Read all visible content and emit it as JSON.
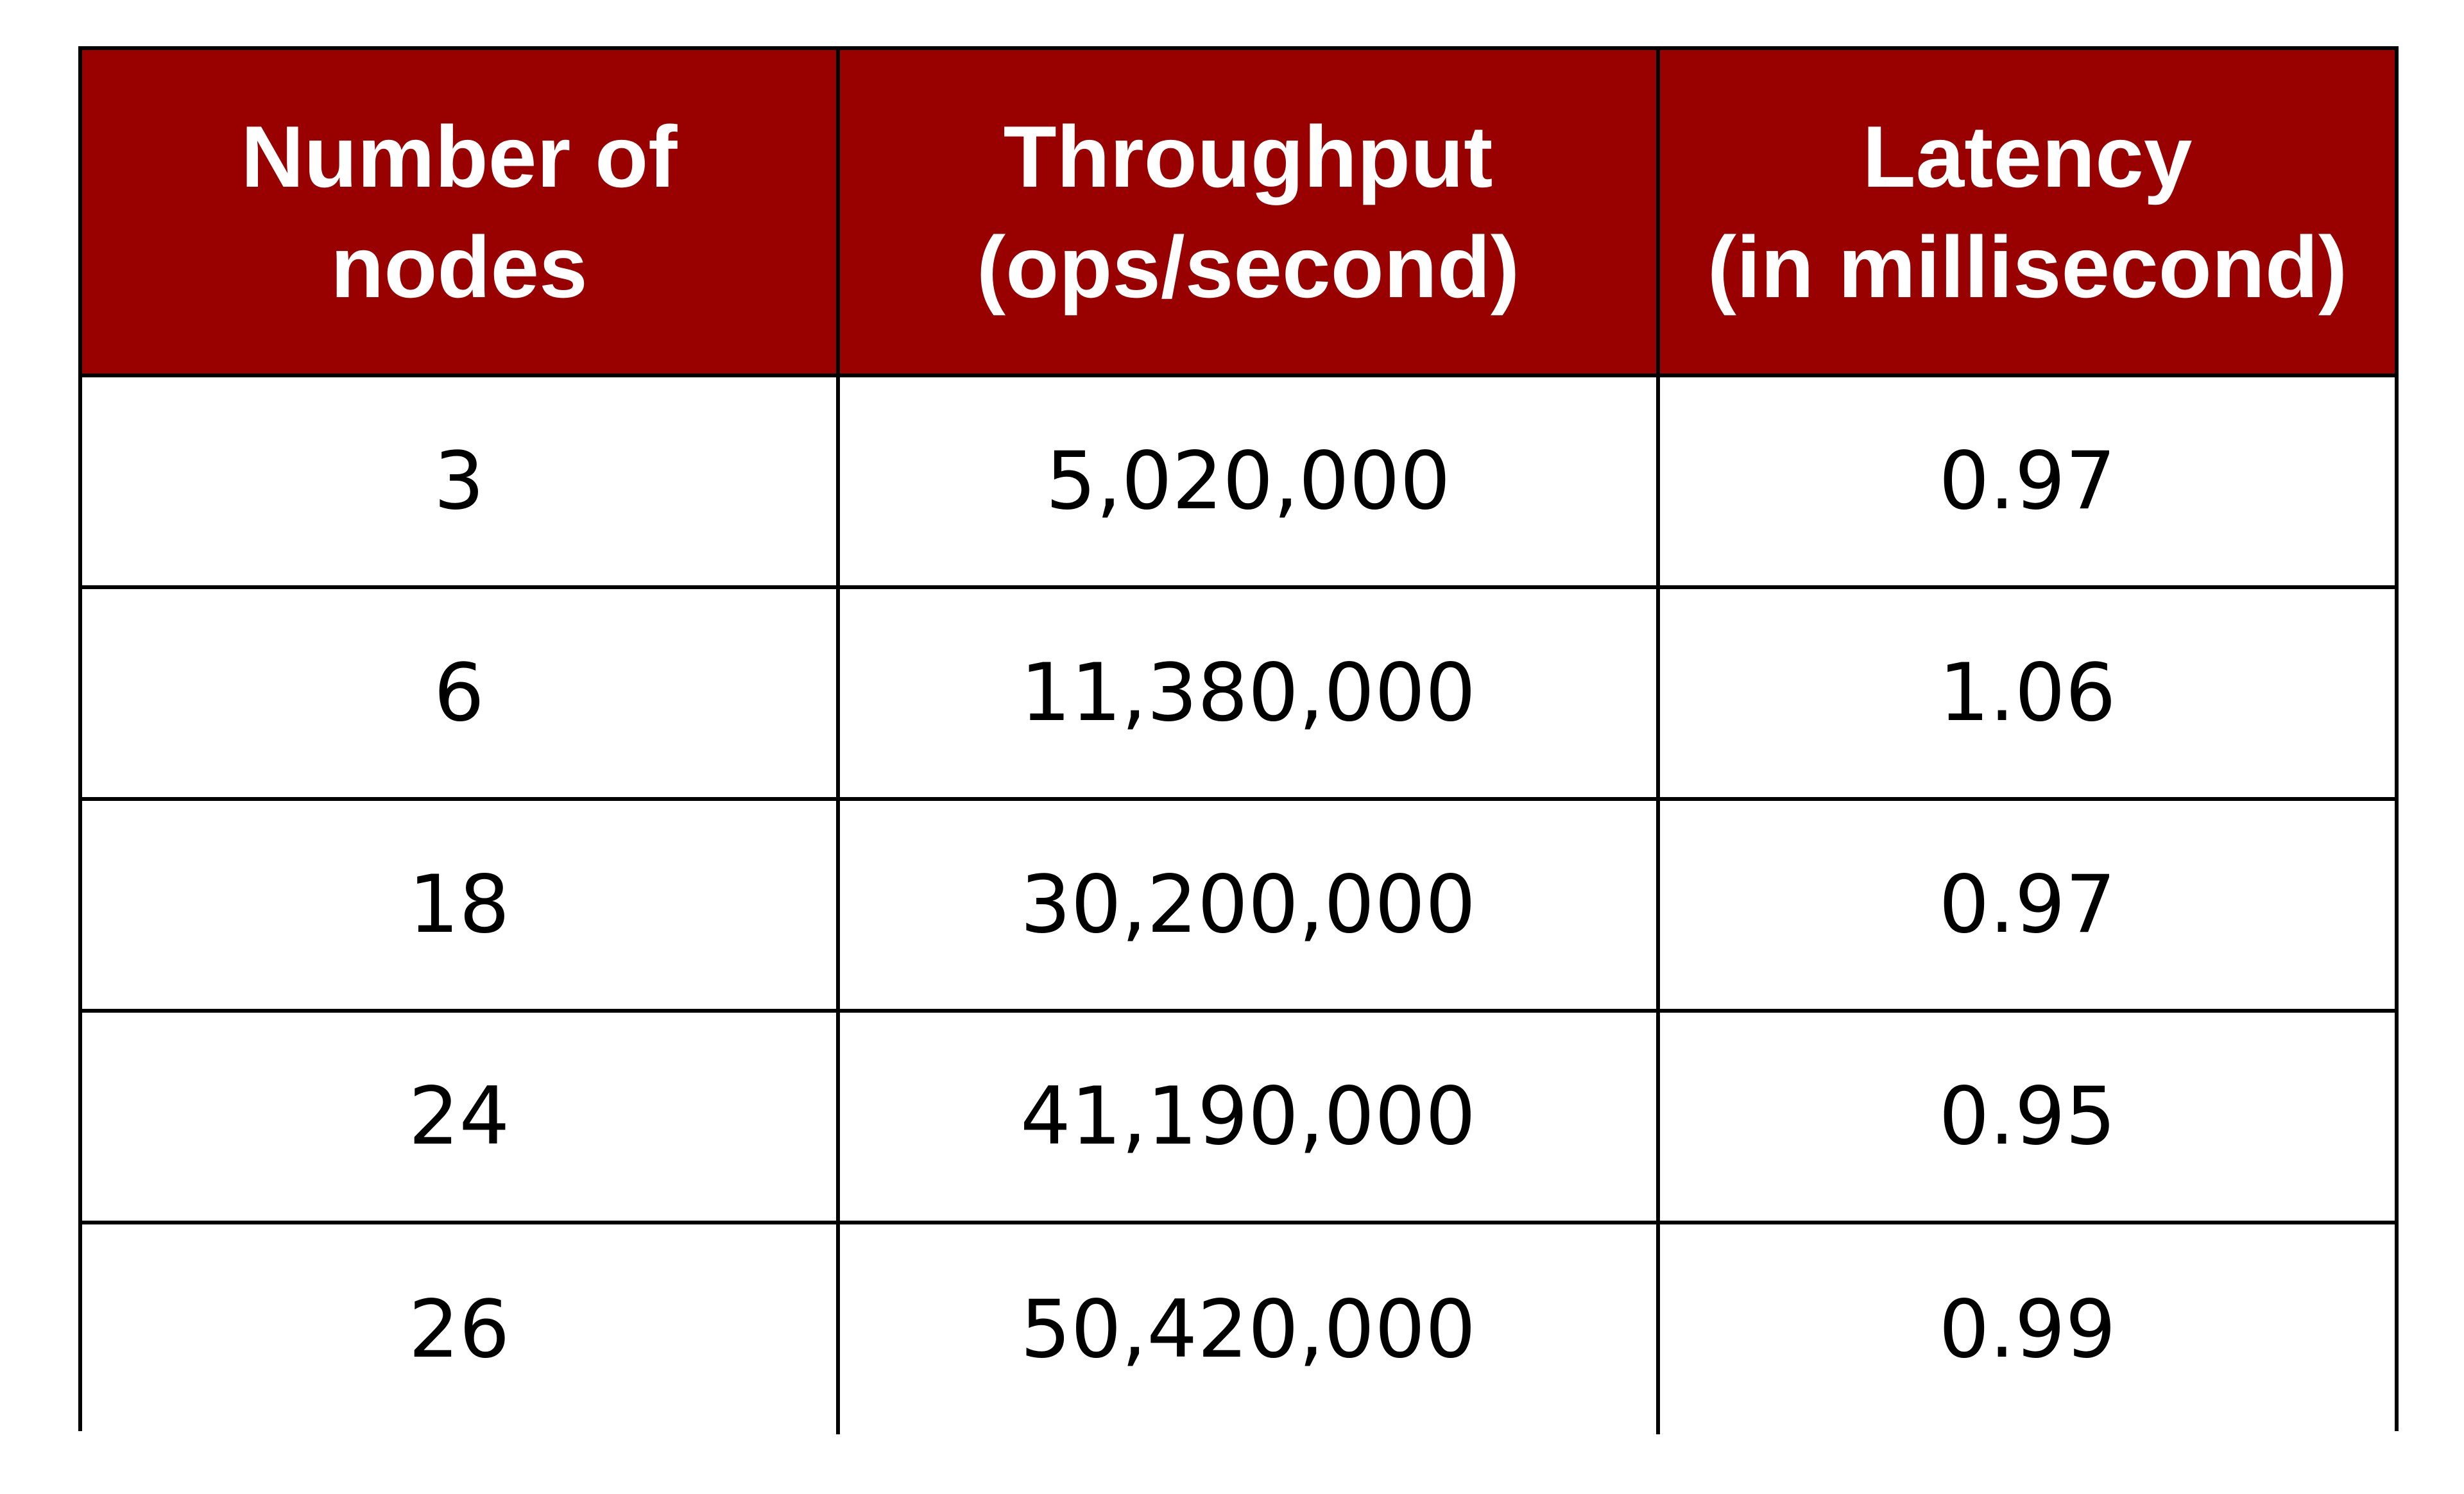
{
  "colors": {
    "header_background": "#990000",
    "header_text": "#ffffff",
    "border": "#000000",
    "cell_background": "#ffffff"
  },
  "chart_data": {
    "type": "table",
    "columns": [
      {
        "line1": "Number of",
        "line2": "nodes"
      },
      {
        "line1": "Throughput",
        "line2": "(ops/second)"
      },
      {
        "line1": "Latency",
        "line2": "(in millisecond)"
      }
    ],
    "rows": [
      [
        "3",
        "5,020,000",
        "0.97"
      ],
      [
        "6",
        "11,380,000",
        "1.06"
      ],
      [
        "18",
        "30,200,000",
        "0.97"
      ],
      [
        "24",
        "41,190,000",
        "0.95"
      ],
      [
        "26",
        "50,420,000",
        "0.99"
      ]
    ]
  }
}
